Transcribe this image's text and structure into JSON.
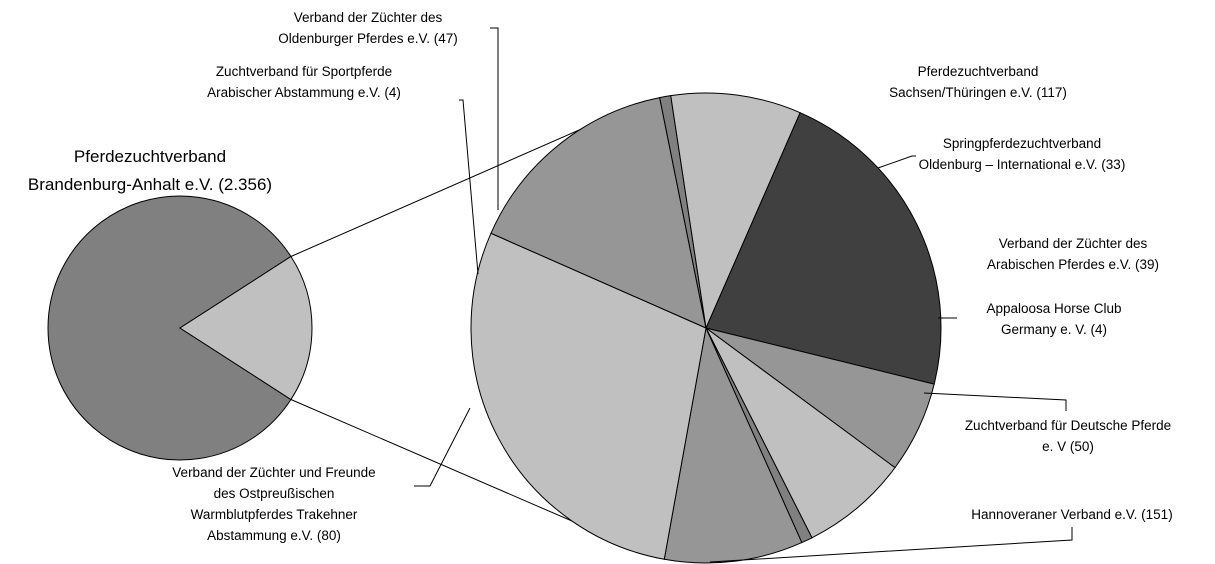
{
  "chart_data": {
    "type": "pie",
    "subtype": "pie-of-pie",
    "main_pie": {
      "slices": [
        {
          "label_lines": [
            "Pferdezuchtverband",
            "Brandenburg-Anhalt e.V. (2.356)"
          ],
          "value": 2356,
          "color": "#808080"
        },
        {
          "label_lines": [],
          "value": 525,
          "color": "#c0c0c0",
          "group": "other"
        }
      ]
    },
    "secondary_pie": {
      "slices": [
        {
          "label_lines": [
            "Pferdezuchtverband",
            "Sachsen/Thüringen e.V.  (117)"
          ],
          "value": 117,
          "color": "#404040"
        },
        {
          "label_lines": [
            "Springpferdezuchtverband",
            "Oldenburg – International e.V.  (33)"
          ],
          "value": 33,
          "color": "#969696"
        },
        {
          "label_lines": [
            "Verband der Züchter des",
            "Arabischen Pferdes e.V. (39)"
          ],
          "value": 39,
          "color": "#c0c0c0"
        },
        {
          "label_lines": [
            "Appaloosa Horse Club",
            "Germany e. V.  (4)"
          ],
          "value": 4,
          "color": "#808080"
        },
        {
          "label_lines": [
            "Zuchtverband für Deutsche Pferde",
            "e. V (50)"
          ],
          "value": 50,
          "color": "#969696"
        },
        {
          "label_lines": [
            "Hannoveraner Verband e.V. (151)"
          ],
          "value": 151,
          "color": "#c0c0c0"
        },
        {
          "label_lines": [
            "Verband der Züchter und Freunde",
            "des Ostpreußischen",
            "Warmblutpferdes Trakehner",
            "Abstammung e.V.  (80)"
          ],
          "value": 80,
          "color": "#969696"
        },
        {
          "label_lines": [
            "Zuchtverband für Sportpferde",
            "Arabischer Abstammung e.V. (4)"
          ],
          "value": 4,
          "color": "#808080"
        },
        {
          "label_lines": [
            "Verband der Züchter des",
            "Oldenburger Pferdes e.V. (47)"
          ],
          "value": 47,
          "color": "#c0c0c0"
        }
      ]
    },
    "legend": "none"
  }
}
